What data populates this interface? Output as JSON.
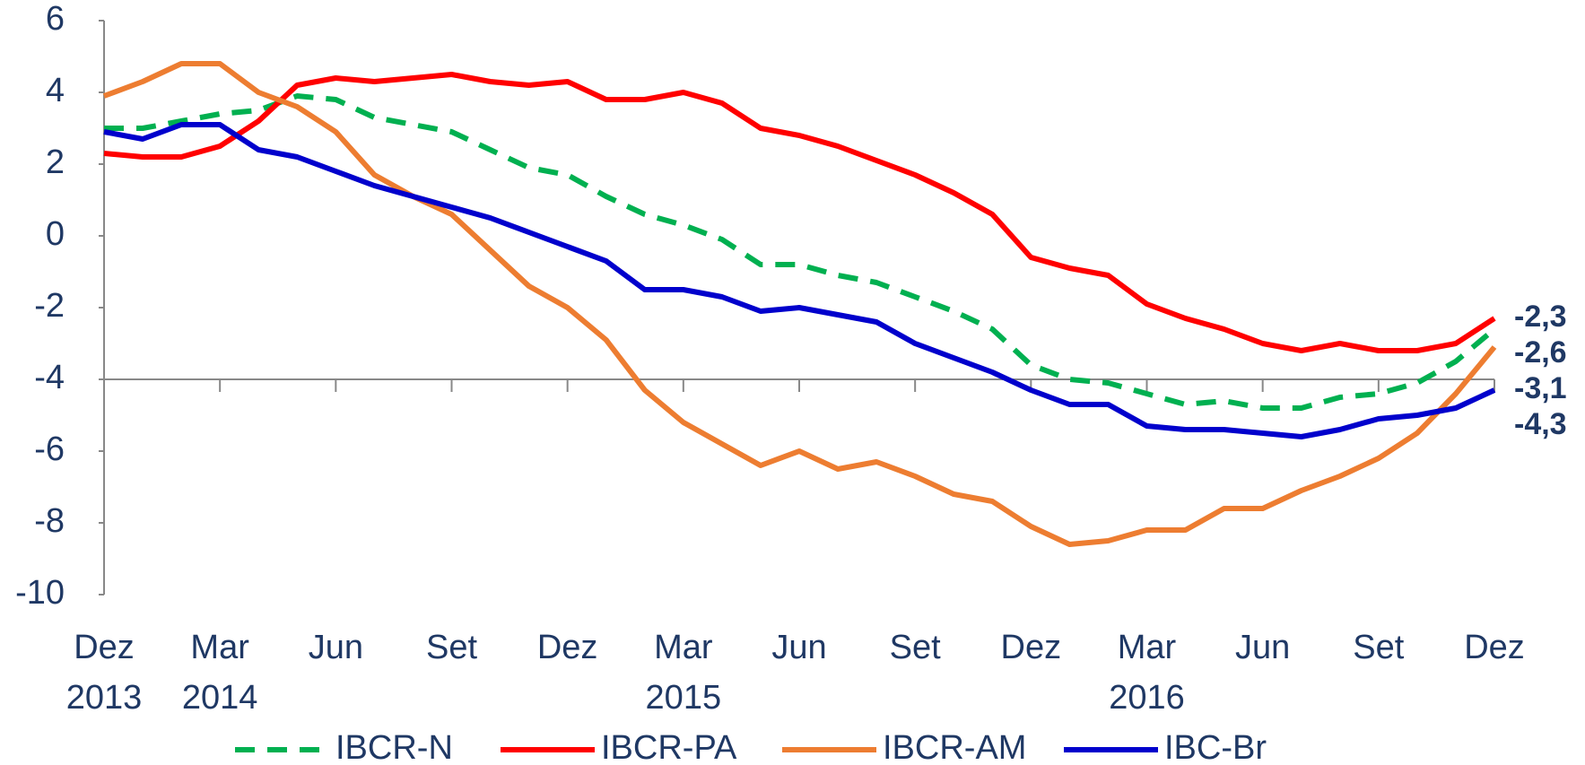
{
  "chart_data": {
    "type": "line",
    "categories": [
      "Dez 2013",
      null,
      null,
      "Mar 2014",
      null,
      null,
      "Jun",
      null,
      null,
      "Set",
      null,
      null,
      "Dez",
      null,
      null,
      "Mar 2015",
      null,
      null,
      "Jun",
      null,
      null,
      "Set",
      null,
      null,
      "Dez",
      null,
      null,
      "Mar 2016",
      null,
      null,
      "Jun",
      null,
      null,
      "Set",
      null,
      null,
      "Dez"
    ],
    "series": [
      {
        "name": "IBCR-N",
        "color": "#00b050",
        "dashed": true,
        "values": [
          3.0,
          3.0,
          3.2,
          3.4,
          3.5,
          3.9,
          3.8,
          3.3,
          3.1,
          2.9,
          2.4,
          1.9,
          1.7,
          1.1,
          0.6,
          0.3,
          -0.1,
          -0.8,
          -0.8,
          -1.1,
          -1.3,
          -1.7,
          -2.1,
          -2.6,
          -3.6,
          -4.0,
          -4.1,
          -4.4,
          -4.7,
          -4.6,
          -4.8,
          -4.8,
          -4.5,
          -4.4,
          -4.1,
          -3.5,
          -2.6
        ],
        "value_labels": [
          null,
          null,
          null,
          null,
          null,
          null,
          null,
          null,
          null,
          null,
          null,
          null,
          null,
          null,
          null,
          null,
          null,
          null,
          null,
          null,
          null,
          null,
          null,
          null,
          null,
          null,
          null,
          null,
          null,
          null,
          null,
          null,
          null,
          null,
          null,
          null,
          "-2,6"
        ]
      },
      {
        "name": "IBCR-PA",
        "color": "#ff0000",
        "dashed": false,
        "values": [
          2.3,
          2.2,
          2.2,
          2.5,
          3.2,
          4.2,
          4.4,
          4.3,
          4.4,
          4.5,
          4.3,
          4.2,
          4.3,
          3.8,
          3.8,
          4.0,
          3.7,
          3.0,
          2.8,
          2.5,
          2.1,
          1.7,
          1.2,
          0.6,
          -0.6,
          -0.9,
          -1.1,
          -1.9,
          -2.3,
          -2.6,
          -3.0,
          -3.2,
          -3.0,
          -3.2,
          -3.2,
          -3.0,
          -2.3
        ],
        "value_labels": [
          null,
          null,
          null,
          null,
          null,
          null,
          null,
          null,
          null,
          null,
          null,
          null,
          null,
          null,
          null,
          null,
          null,
          null,
          null,
          null,
          null,
          null,
          null,
          null,
          null,
          null,
          null,
          null,
          null,
          null,
          null,
          null,
          null,
          null,
          null,
          null,
          "-2,3"
        ]
      },
      {
        "name": "IBCR-AM",
        "color": "#ed7d31",
        "dashed": false,
        "values": [
          3.9,
          4.3,
          4.8,
          4.8,
          4.0,
          3.6,
          2.9,
          1.7,
          1.1,
          0.6,
          -0.4,
          -1.4,
          -2.0,
          -2.9,
          -4.3,
          -5.2,
          -5.8,
          -6.4,
          -6.0,
          -6.5,
          -6.3,
          -6.7,
          -7.2,
          -7.4,
          -8.1,
          -8.6,
          -8.5,
          -8.2,
          -8.2,
          -7.6,
          -7.6,
          -7.1,
          -6.7,
          -6.2,
          -5.5,
          -4.4,
          -3.1
        ],
        "value_labels": [
          null,
          null,
          null,
          null,
          null,
          null,
          null,
          null,
          null,
          null,
          null,
          null,
          null,
          null,
          null,
          null,
          null,
          null,
          null,
          null,
          null,
          null,
          null,
          null,
          null,
          null,
          null,
          null,
          null,
          null,
          null,
          null,
          null,
          null,
          null,
          null,
          "-3,1"
        ]
      },
      {
        "name": "IBC-Br",
        "color": "#0000cc",
        "dashed": false,
        "values": [
          2.9,
          2.7,
          3.1,
          3.1,
          2.4,
          2.2,
          1.8,
          1.4,
          1.1,
          0.8,
          0.5,
          0.1,
          -0.3,
          -0.7,
          -1.5,
          -1.5,
          -1.7,
          -2.1,
          -2.0,
          -2.2,
          -2.4,
          -3.0,
          -3.4,
          -3.8,
          -4.3,
          -4.7,
          -4.7,
          -5.3,
          -5.4,
          -5.4,
          -5.5,
          -5.6,
          -5.4,
          -5.1,
          -5.0,
          -4.8,
          -4.3
        ],
        "value_labels": [
          null,
          null,
          null,
          null,
          null,
          null,
          null,
          null,
          null,
          null,
          null,
          null,
          null,
          null,
          null,
          null,
          null,
          null,
          null,
          null,
          null,
          null,
          null,
          null,
          null,
          null,
          null,
          null,
          null,
          null,
          null,
          null,
          null,
          null,
          null,
          null,
          "-4,3"
        ]
      }
    ],
    "ylim": [
      -10,
      6
    ],
    "yticks": [
      -10,
      -8,
      -6,
      -4,
      -2,
      0,
      2,
      4,
      6
    ],
    "x_axis_at": -4
  }
}
